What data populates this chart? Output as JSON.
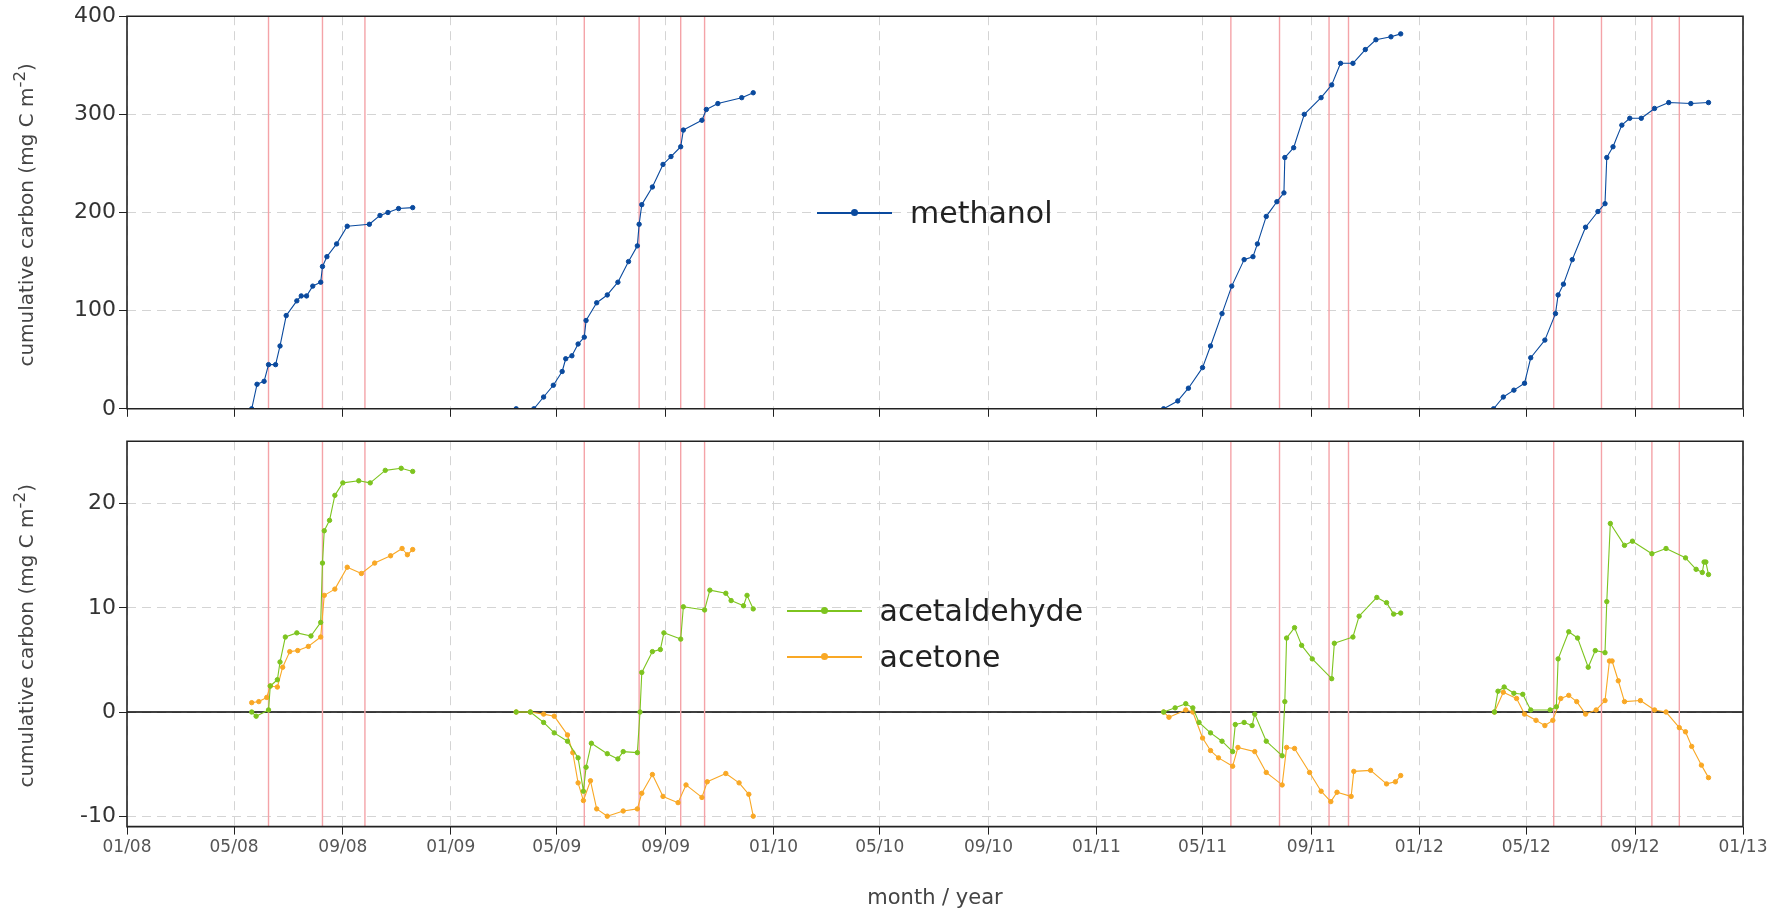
{
  "chart_data": [
    {
      "type": "line",
      "ylabel": "cumulative carbon (mg C m$^{-2}$)",
      "xlim": [
        "2008-01-01",
        "2013-01-01"
      ],
      "ylim": [
        0,
        400
      ],
      "yticks": [
        0,
        100,
        200,
        300,
        400
      ],
      "xticks": [
        {
          "value": "2008-01-01",
          "label": null
        },
        {
          "value": "2008-05-01",
          "label": null
        },
        {
          "value": "2008-09-01",
          "label": null
        },
        {
          "value": "2009-01-01",
          "label": null
        },
        {
          "value": "2009-05-01",
          "label": null
        },
        {
          "value": "2009-09-01",
          "label": null
        },
        {
          "value": "2010-01-01",
          "label": null
        },
        {
          "value": "2010-05-01",
          "label": null
        },
        {
          "value": "2010-09-01",
          "label": null
        },
        {
          "value": "2011-01-01",
          "label": null
        },
        {
          "value": "2011-05-01",
          "label": null
        },
        {
          "value": "2011-09-01",
          "label": null
        },
        {
          "value": "2012-01-01",
          "label": null
        },
        {
          "value": "2012-05-01",
          "label": null
        },
        {
          "value": "2012-09-01",
          "label": null
        },
        {
          "value": "2013-01-01",
          "label": null
        }
      ],
      "tick_labels": "y",
      "grid": true,
      "legend": "center",
      "marker": "circle",
      "line_style": "solid",
      "ref_lines": [
        {
          "axis": "x",
          "value": "2008-06-09",
          "color": "#f4a3a8"
        },
        {
          "axis": "x",
          "value": "2008-08-09",
          "color": "#f4a3a8"
        },
        {
          "axis": "x",
          "value": "2008-09-26",
          "color": "#f4a3a8"
        },
        {
          "axis": "x",
          "value": "2009-06-01",
          "color": "#f4a3a8"
        },
        {
          "axis": "x",
          "value": "2009-08-02",
          "color": "#f4a3a8"
        },
        {
          "axis": "x",
          "value": "2009-09-18",
          "color": "#f4a3a8"
        },
        {
          "axis": "x",
          "value": "2009-10-15",
          "color": "#f4a3a8"
        },
        {
          "axis": "x",
          "value": "2011-06-02",
          "color": "#f4a3a8"
        },
        {
          "axis": "x",
          "value": "2011-07-27",
          "color": "#f4a3a8"
        },
        {
          "axis": "x",
          "value": "2011-09-21",
          "color": "#f4a3a8"
        },
        {
          "axis": "x",
          "value": "2011-10-13",
          "color": "#f4a3a8"
        },
        {
          "axis": "x",
          "value": "2012-06-01",
          "color": "#f4a3a8"
        },
        {
          "axis": "x",
          "value": "2012-07-25",
          "color": "#f4a3a8"
        },
        {
          "axis": "x",
          "value": "2012-09-20",
          "color": "#f4a3a8"
        },
        {
          "axis": "x",
          "value": "2012-10-21",
          "color": "#f4a3a8"
        }
      ],
      "series": [
        {
          "name": "methanol",
          "color": "#0a4a9e",
          "x": [
            "2008-05-21",
            "2008-05-27",
            "2008-06-04",
            "2008-06-09",
            "2008-06-17",
            "2008-06-22",
            "2008-06-29",
            "2008-07-11",
            "2008-07-16",
            "2008-07-22",
            "2008-07-29",
            "2008-08-07",
            "2008-08-09",
            "2008-08-14",
            "2008-08-25",
            "2008-09-06",
            "2008-10-01",
            "2008-10-13",
            "2008-10-22",
            "2008-11-03",
            "2008-11-19",
            "2009-01-01",
            "2009-03-16",
            "2009-04-05",
            "2009-04-16",
            "2009-04-27",
            "2009-05-07",
            "2009-05-11",
            "2009-05-18",
            "2009-05-25",
            "2009-06-01",
            "2009-06-03",
            "2009-06-15",
            "2009-06-27",
            "2009-07-09",
            "2009-07-21",
            "2009-07-31",
            "2009-08-02",
            "2009-08-05",
            "2009-08-17",
            "2009-08-29",
            "2009-09-07",
            "2009-09-18",
            "2009-09-21",
            "2009-10-12",
            "2009-10-17",
            "2009-10-30",
            "2009-11-26",
            "2009-12-09",
            "2010-07-01",
            "2011-03-18",
            "2011-04-03",
            "2011-04-15",
            "2011-05-01",
            "2011-05-10",
            "2011-05-23",
            "2011-06-03",
            "2011-06-17",
            "2011-06-27",
            "2011-07-02",
            "2011-07-12",
            "2011-07-24",
            "2011-08-01",
            "2011-08-02",
            "2011-08-12",
            "2011-08-24",
            "2011-09-12",
            "2011-09-24",
            "2011-10-04",
            "2011-10-18",
            "2011-11-01",
            "2011-11-13",
            "2011-11-30",
            "2011-12-11",
            "2012-02-01",
            "2012-03-25",
            "2012-04-05",
            "2012-04-17",
            "2012-04-29",
            "2012-05-06",
            "2012-05-22",
            "2012-06-03",
            "2012-06-06",
            "2012-06-12",
            "2012-06-22",
            "2012-07-07",
            "2012-07-21",
            "2012-07-29",
            "2012-07-31",
            "2012-08-07",
            "2012-08-17",
            "2012-08-26",
            "2012-09-08",
            "2012-09-23",
            "2012-10-09",
            "2012-11-03",
            "2012-11-23"
          ],
          "values": [
            0,
            25,
            28,
            45,
            45,
            64,
            95,
            110,
            115,
            115,
            125,
            129,
            145,
            155,
            168,
            186,
            188,
            197,
            200,
            204,
            205,
            null,
            0,
            0,
            12,
            24,
            38,
            51,
            54,
            66,
            73,
            90,
            108,
            116,
            129,
            150,
            166,
            188,
            208,
            226,
            249,
            257,
            267,
            284,
            294,
            305,
            311,
            317,
            322,
            null,
            0,
            8,
            21,
            42,
            64,
            97,
            125,
            152,
            155,
            168,
            196,
            211,
            220,
            256,
            266,
            300,
            317,
            330,
            352,
            352,
            366,
            376,
            379,
            382,
            null,
            0,
            12,
            19,
            26,
            52,
            70,
            97,
            116,
            127,
            152,
            185,
            201,
            209,
            256,
            267,
            289,
            296,
            296,
            306,
            312,
            311,
            312
          ]
        }
      ]
    },
    {
      "type": "line",
      "ylabel": "cumulative carbon (mg C m$^{-2}$)",
      "xlabel": "month / year",
      "xlim": [
        "2008-01-01",
        "2013-01-01"
      ],
      "ylim": [
        -11,
        26
      ],
      "yticks": [
        -10,
        0,
        10,
        20
      ],
      "xticks": [
        {
          "value": "2008-01-01",
          "label": "01/08"
        },
        {
          "value": "2008-05-01",
          "label": "05/08"
        },
        {
          "value": "2008-09-01",
          "label": "09/08"
        },
        {
          "value": "2009-01-01",
          "label": "01/09"
        },
        {
          "value": "2009-05-01",
          "label": "05/09"
        },
        {
          "value": "2009-09-01",
          "label": "09/09"
        },
        {
          "value": "2010-01-01",
          "label": "01/10"
        },
        {
          "value": "2010-05-01",
          "label": "05/10"
        },
        {
          "value": "2010-09-01",
          "label": "09/10"
        },
        {
          "value": "2011-01-01",
          "label": "01/11"
        },
        {
          "value": "2011-05-01",
          "label": "05/11"
        },
        {
          "value": "2011-09-01",
          "label": "09/11"
        },
        {
          "value": "2012-01-01",
          "label": "01/12"
        },
        {
          "value": "2012-05-01",
          "label": "05/12"
        },
        {
          "value": "2012-09-01",
          "label": "09/12"
        },
        {
          "value": "2013-01-01",
          "label": "01/13"
        }
      ],
      "grid": true,
      "legend": "center",
      "marker": "circle",
      "line_style": "solid",
      "ref_lines": [
        {
          "axis": "y",
          "value": 0,
          "color": "#000000"
        },
        {
          "axis": "x",
          "value": "2008-06-09",
          "color": "#f4a3a8"
        },
        {
          "axis": "x",
          "value": "2008-08-09",
          "color": "#f4a3a8"
        },
        {
          "axis": "x",
          "value": "2008-09-26",
          "color": "#f4a3a8"
        },
        {
          "axis": "x",
          "value": "2009-06-01",
          "color": "#f4a3a8"
        },
        {
          "axis": "x",
          "value": "2009-08-02",
          "color": "#f4a3a8"
        },
        {
          "axis": "x",
          "value": "2009-09-18",
          "color": "#f4a3a8"
        },
        {
          "axis": "x",
          "value": "2009-10-15",
          "color": "#f4a3a8"
        },
        {
          "axis": "x",
          "value": "2011-06-02",
          "color": "#f4a3a8"
        },
        {
          "axis": "x",
          "value": "2011-07-27",
          "color": "#f4a3a8"
        },
        {
          "axis": "x",
          "value": "2011-09-21",
          "color": "#f4a3a8"
        },
        {
          "axis": "x",
          "value": "2011-10-13",
          "color": "#f4a3a8"
        },
        {
          "axis": "x",
          "value": "2012-06-01",
          "color": "#f4a3a8"
        },
        {
          "axis": "x",
          "value": "2012-07-25",
          "color": "#f4a3a8"
        },
        {
          "axis": "x",
          "value": "2012-09-20",
          "color": "#f4a3a8"
        },
        {
          "axis": "x",
          "value": "2012-10-21",
          "color": "#f4a3a8"
        }
      ],
      "series": [
        {
          "name": "acetaldehyde",
          "color": "#7dc41f",
          "x": [
            "2008-05-21",
            "2008-05-26",
            "2008-06-09",
            "2008-06-11",
            "2008-06-19",
            "2008-06-22",
            "2008-06-28",
            "2008-07-11",
            "2008-07-27",
            "2008-08-07",
            "2008-08-09",
            "2008-08-11",
            "2008-08-17",
            "2008-08-23",
            "2008-09-01",
            "2008-09-19",
            "2008-10-02",
            "2008-10-19",
            "2008-11-06",
            "2008-11-19",
            "2009-01-01",
            "2009-03-16",
            "2009-04-01",
            "2009-04-16",
            "2009-04-28",
            "2009-05-13",
            "2009-05-25",
            "2009-05-31",
            "2009-06-03",
            "2009-06-09",
            "2009-06-27",
            "2009-07-09",
            "2009-07-15",
            "2009-07-31",
            "2009-08-03",
            "2009-08-05",
            "2009-08-17",
            "2009-08-26",
            "2009-08-30",
            "2009-09-18",
            "2009-09-21",
            "2009-10-15",
            "2009-10-21",
            "2009-11-08",
            "2009-11-14",
            "2009-11-28",
            "2009-12-02",
            "2009-12-09",
            "2010-07-01",
            "2011-03-18",
            "2011-03-31",
            "2011-04-12",
            "2011-04-20",
            "2011-04-27",
            "2011-05-10",
            "2011-05-23",
            "2011-06-04",
            "2011-06-07",
            "2011-06-17",
            "2011-06-26",
            "2011-06-29",
            "2011-07-12",
            "2011-07-30",
            "2011-08-02",
            "2011-08-04",
            "2011-08-13",
            "2011-08-21",
            "2011-09-02",
            "2011-09-24",
            "2011-09-27",
            "2011-10-18",
            "2011-10-25",
            "2011-11-14",
            "2011-11-25",
            "2011-12-03",
            "2011-12-11",
            "2012-02-01",
            "2012-03-26",
            "2012-03-30",
            "2012-04-06",
            "2012-04-17",
            "2012-04-27",
            "2012-05-06",
            "2012-05-28",
            "2012-06-04",
            "2012-06-06",
            "2012-06-18",
            "2012-06-28",
            "2012-07-10",
            "2012-07-18",
            "2012-07-29",
            "2012-07-31",
            "2012-08-04",
            "2012-08-20",
            "2012-08-29",
            "2012-09-20",
            "2012-10-06",
            "2012-10-28",
            "2012-11-09",
            "2012-11-16",
            "2012-11-18",
            "2012-11-20",
            "2012-11-23"
          ],
          "values": [
            0,
            -0.4,
            0.2,
            2.5,
            3.1,
            4.8,
            7.2,
            7.6,
            7.3,
            8.6,
            14.3,
            17.4,
            18.4,
            20.8,
            22,
            22.2,
            22,
            23.2,
            23.4,
            23.1,
            null,
            0,
            0,
            -1,
            -2,
            -2.8,
            -4.4,
            -7.6,
            -5.3,
            -3,
            -4,
            -4.5,
            -3.8,
            -3.9,
            0,
            3.8,
            5.8,
            6,
            7.6,
            7,
            10.1,
            9.8,
            11.7,
            11.4,
            10.7,
            10.2,
            11.2,
            9.9,
            null,
            0,
            0.4,
            0.8,
            0.4,
            -1,
            -2,
            -2.8,
            -3.8,
            -1.2,
            -1,
            -1.3,
            -0.2,
            -2.8,
            -4.2,
            1,
            7.1,
            8.1,
            6.4,
            5.1,
            3.2,
            6.6,
            7.2,
            9.2,
            11,
            10.5,
            9.4,
            9.5,
            null,
            0,
            2,
            2.4,
            1.8,
            1.7,
            0.2,
            0.2,
            0.5,
            5.1,
            7.7,
            7.1,
            4.3,
            5.9,
            5.7,
            10.6,
            18.1,
            16,
            16.4,
            15.2,
            15.7,
            14.8,
            13.7,
            13.4,
            14.4,
            14.4,
            13.2
          ]
        },
        {
          "name": "acetone",
          "color": "#f9a825",
          "x": [
            "2008-05-21",
            "2008-05-29",
            "2008-06-07",
            "2008-06-11",
            "2008-06-19",
            "2008-06-25",
            "2008-07-03",
            "2008-07-12",
            "2008-07-24",
            "2008-08-07",
            "2008-08-11",
            "2008-08-23",
            "2008-09-06",
            "2008-09-22",
            "2008-10-07",
            "2008-10-25",
            "2008-11-07",
            "2008-11-13",
            "2008-11-19",
            "2009-01-01",
            "2009-03-16",
            "2009-04-01",
            "2009-04-16",
            "2009-04-28",
            "2009-05-13",
            "2009-05-19",
            "2009-05-25",
            "2009-05-31",
            "2009-06-08",
            "2009-06-15",
            "2009-06-27",
            "2009-07-15",
            "2009-07-31",
            "2009-08-05",
            "2009-08-17",
            "2009-08-29",
            "2009-09-15",
            "2009-09-24",
            "2009-10-12",
            "2009-10-18",
            "2009-11-08",
            "2009-11-23",
            "2009-12-04",
            "2009-12-09",
            "2010-07-01",
            "2011-03-18",
            "2011-03-24",
            "2011-04-12",
            "2011-04-20",
            "2011-05-01",
            "2011-05-10",
            "2011-05-19",
            "2011-06-04",
            "2011-06-10",
            "2011-06-29",
            "2011-07-12",
            "2011-07-30",
            "2011-08-04",
            "2011-08-13",
            "2011-08-30",
            "2011-09-12",
            "2011-09-23",
            "2011-09-30",
            "2011-10-16",
            "2011-10-19",
            "2011-11-07",
            "2011-11-25",
            "2011-12-05",
            "2011-12-11",
            "2012-02-01",
            "2012-03-26",
            "2012-04-05",
            "2012-04-20",
            "2012-04-29",
            "2012-05-12",
            "2012-05-22",
            "2012-05-31",
            "2012-06-09",
            "2012-06-18",
            "2012-06-27",
            "2012-07-07",
            "2012-07-19",
            "2012-07-29",
            "2012-08-03",
            "2012-08-06",
            "2012-08-13",
            "2012-08-20",
            "2012-09-07",
            "2012-09-23",
            "2012-10-06",
            "2012-10-21",
            "2012-10-28",
            "2012-11-04",
            "2012-11-15",
            "2012-11-23"
          ],
          "values": [
            0.9,
            1,
            1.4,
            2.5,
            2.4,
            4.3,
            5.8,
            5.9,
            6.3,
            7.2,
            11.2,
            11.8,
            13.9,
            13.3,
            14.3,
            15,
            15.7,
            15.1,
            15.6,
            null,
            0,
            0,
            -0.2,
            -0.4,
            -2.2,
            -3.9,
            -6.8,
            -8.5,
            -6.6,
            -9.3,
            -10,
            -9.5,
            -9.3,
            -7.8,
            -6,
            -8.1,
            -8.7,
            -7,
            -8.2,
            -6.7,
            -5.9,
            -6.8,
            -7.9,
            -10,
            null,
            0,
            -0.5,
            0.2,
            0,
            -2.5,
            -3.7,
            -4.4,
            -5.2,
            -3.4,
            -3.8,
            -5.8,
            -7,
            -3.4,
            -3.5,
            -5.8,
            -7.6,
            -8.6,
            -7.7,
            -8.1,
            -5.7,
            -5.6,
            -6.9,
            -6.7,
            -6.1,
            null,
            0,
            1.9,
            1.3,
            -0.2,
            -0.8,
            -1.3,
            -0.8,
            1.3,
            1.6,
            1,
            -0.2,
            0.2,
            1.1,
            4.9,
            4.9,
            3,
            1,
            1.1,
            0.2,
            0,
            -1.5,
            -1.9,
            -3.3,
            -5.1,
            -6.3
          ]
        }
      ]
    }
  ]
}
